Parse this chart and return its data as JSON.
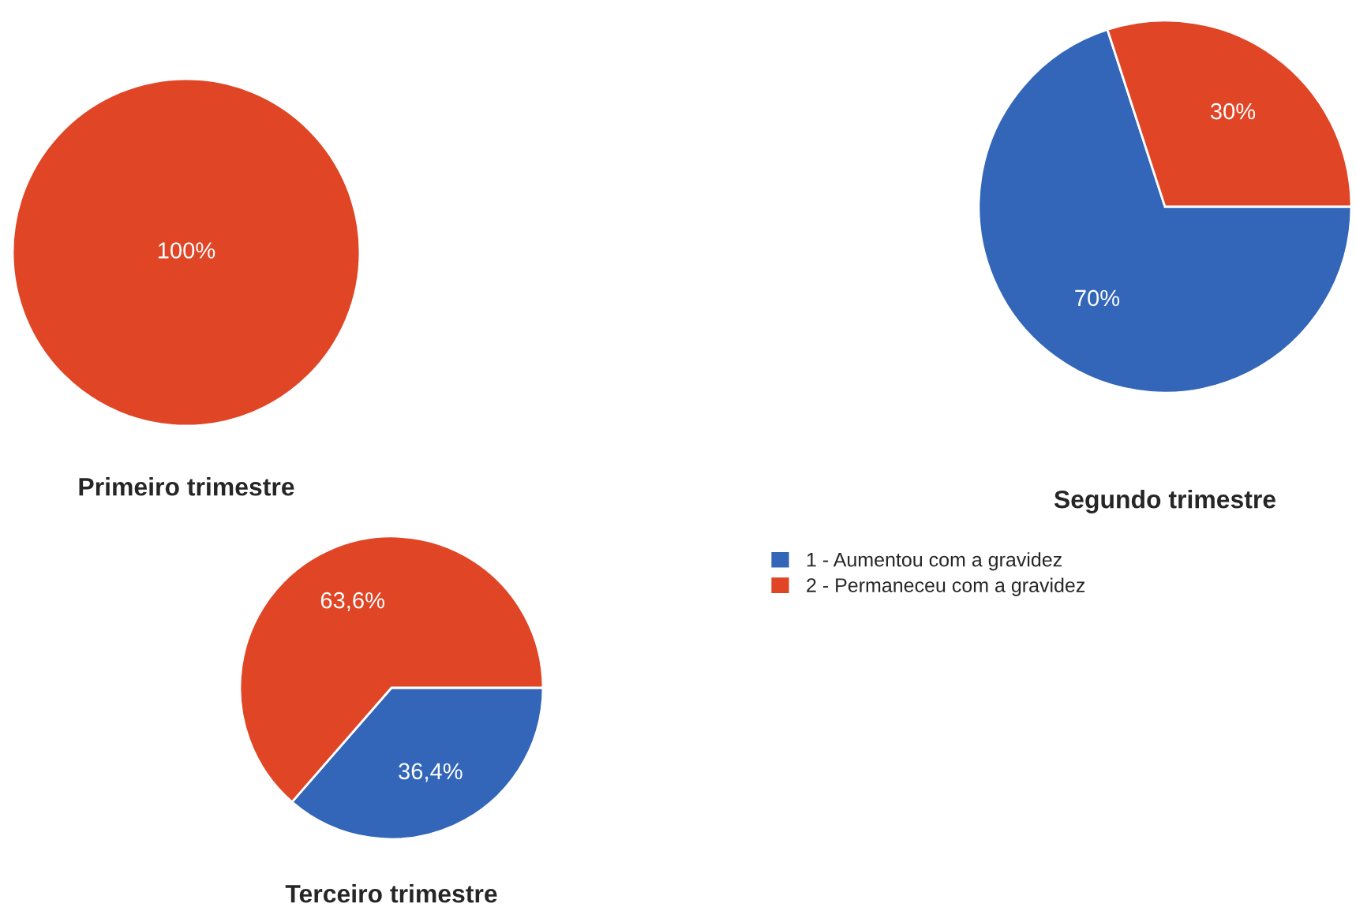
{
  "chart_data": [
    {
      "type": "pie",
      "title": "Primeiro trimestre",
      "categories": [
        null,
        null
      ],
      "values": [
        0,
        100
      ],
      "colors": [
        "#3366b8",
        "#e04526"
      ],
      "value_labels": [
        null,
        "100%"
      ],
      "legend": false
    },
    {
      "type": "pie",
      "title": "Segundo trimestre",
      "categories": [
        "1 - Aumentou com a gravidez",
        "2 - Permaneceu com a gravidez"
      ],
      "values": [
        70,
        30
      ],
      "colors": [
        "#3366b8",
        "#e04526"
      ],
      "value_labels": [
        "70%",
        "30%"
      ],
      "legend": "bottom left"
    },
    {
      "type": "pie",
      "title": "Terceiro trimestre",
      "categories": [
        null,
        null
      ],
      "values": [
        36.4,
        63.6
      ],
      "colors": [
        "#3366b8",
        "#e04526"
      ],
      "value_labels": [
        "36,4%",
        "63,6%"
      ],
      "legend": false
    }
  ]
}
